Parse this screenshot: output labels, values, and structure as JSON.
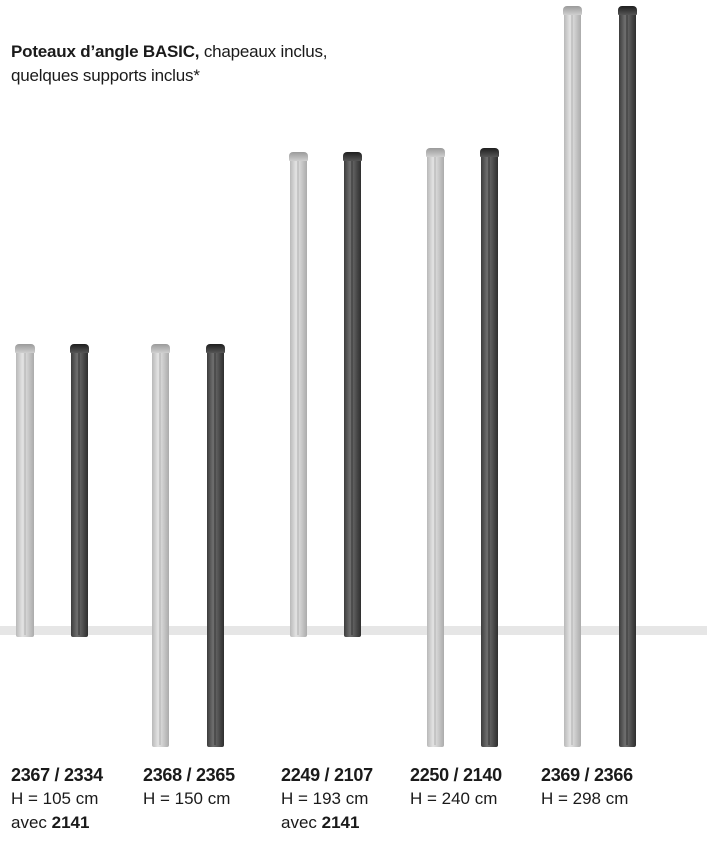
{
  "heading": {
    "bold": "Poteaux d’angle BASIC,",
    "line1_rest": " chapeaux inclus,",
    "line2": "quelques supports inclus*"
  },
  "products": [
    {
      "code": "2367 / 2334",
      "height": "H = 105 cm",
      "avec_prefix": "avec ",
      "avec_code": "2141"
    },
    {
      "code": "2368 / 2365",
      "height": "H = 150 cm",
      "avec_prefix": "",
      "avec_code": ""
    },
    {
      "code": "2249 / 2107",
      "height": "H = 193 cm",
      "avec_prefix": "avec ",
      "avec_code": "2141"
    },
    {
      "code": "2250 / 2140",
      "height": "H = 240 cm",
      "avec_prefix": "",
      "avec_code": ""
    },
    {
      "code": "2369 / 2366",
      "height": "H = 298 cm",
      "avec_prefix": "",
      "avec_code": ""
    }
  ],
  "colors": {
    "light_post": "#d4d4d4",
    "dark_post": "#5a5a5a",
    "ground_line": "#e6e6e6"
  }
}
